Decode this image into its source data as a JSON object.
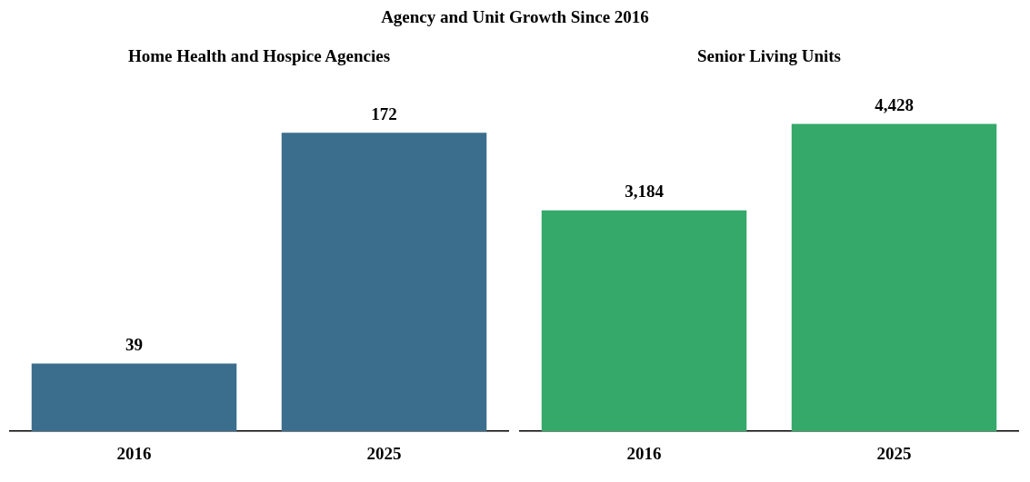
{
  "chart_data": [
    {
      "type": "other",
      "title": "Agency and Unit Growth Since 2016"
    },
    {
      "type": "bar",
      "title": "Home Health and Hospice Agencies",
      "categories": [
        "2016",
        "2025"
      ],
      "values": [
        39,
        172
      ],
      "color": "#3b6e8c",
      "data_labels": true,
      "grid": false,
      "legend": false,
      "tick_labels": "x"
    },
    {
      "type": "bar",
      "title": "Senior Living Units",
      "categories": [
        "2016",
        "2025"
      ],
      "values": [
        3184,
        4428
      ],
      "value_labels": [
        "3,184",
        "4,428"
      ],
      "color": "#34a96a",
      "grid": false,
      "legend": false,
      "tick_labels": "x"
    }
  ]
}
